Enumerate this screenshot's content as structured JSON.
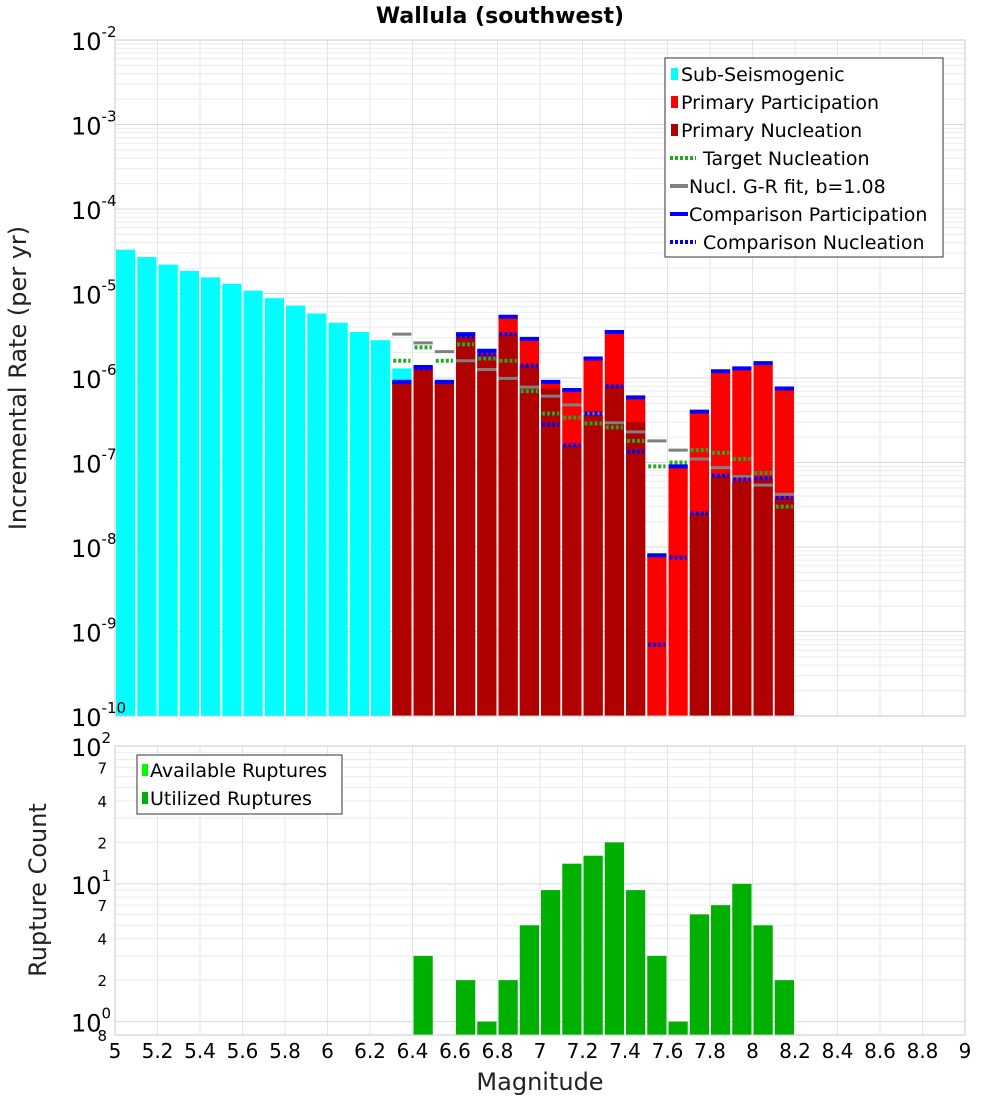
{
  "chart_data": [
    {
      "type": "bar",
      "title": "Wallula (southwest)",
      "xlabel": "",
      "ylabel": "Incremental Rate (per yr)",
      "yscale": "log",
      "ylim": [
        1e-10,
        0.01
      ],
      "xlim": [
        5,
        9
      ],
      "bin_width": 0.1,
      "y_tick_bases": [
        "10",
        "10",
        "10",
        "10",
        "10",
        "10",
        "10",
        "10",
        "10"
      ],
      "y_tick_exponents": [
        "-10",
        "-9",
        "-8",
        "-7",
        "-6",
        "-5",
        "-4",
        "-3",
        "-2"
      ],
      "colors": {
        "sub_seismogenic": "#00ffff",
        "primary_participation": "#ff0000",
        "primary_nucleation": "#b00000",
        "target_nucleation": "#22aa22",
        "gr_fit": "#808080",
        "comparison": "#0000ff",
        "gr_dark": "#333333"
      },
      "legend": {
        "placement": "top-right",
        "items": [
          {
            "label": "Sub-Seismogenic",
            "style": "box",
            "color": "#00ffff"
          },
          {
            "label": "Primary Participation",
            "style": "box",
            "color": "#ff0000"
          },
          {
            "label": "Primary Nucleation",
            "style": "box",
            "color": "#b00000"
          },
          {
            "label": "Target Nucleation",
            "style": "dotted",
            "color": "#22aa22"
          },
          {
            "label": "Nucl. G-R fit, b=1.08",
            "style": "line",
            "color": "#808080"
          },
          {
            "label": "Comparison Participation",
            "style": "line",
            "color": "#0000ff"
          },
          {
            "label": "Comparison Nucleation",
            "style": "dotted",
            "color": "#0000ff"
          }
        ]
      },
      "series": [
        {
          "name": "Sub-Seismogenic",
          "x": [
            5.05,
            5.15,
            5.25,
            5.35,
            5.45,
            5.55,
            5.65,
            5.75,
            5.85,
            5.95,
            6.05,
            6.15,
            6.25,
            6.35
          ],
          "values": [
            3.3e-05,
            2.7e-05,
            2.2e-05,
            1.85e-05,
            1.55e-05,
            1.3e-05,
            1.08e-05,
            8.8e-06,
            7.2e-06,
            5.8e-06,
            4.5e-06,
            3.5e-06,
            2.8e-06,
            1.3e-06
          ]
        },
        {
          "name": "Primary Participation",
          "x": [
            6.35,
            6.45,
            6.55,
            6.65,
            6.75,
            6.85,
            6.95,
            7.05,
            7.15,
            7.25,
            7.35,
            7.45,
            7.55,
            7.65,
            7.75,
            7.85,
            7.95,
            8.05,
            8.15
          ],
          "values": [
            9e-07,
            1.35e-06,
            9e-07,
            3.3e-06,
            2.1e-06,
            5.3e-06,
            2.9e-06,
            9e-07,
            7.2e-07,
            1.7e-06,
            3.5e-06,
            5.9e-07,
            8e-09,
            9e-08,
            4e-07,
            1.2e-06,
            1.3e-06,
            1.5e-06,
            7.5e-07
          ]
        },
        {
          "name": "Primary Nucleation",
          "x": [
            6.35,
            6.45,
            6.55,
            6.65,
            6.75,
            6.85,
            6.95,
            7.05,
            7.15,
            7.25,
            7.35,
            7.45,
            7.55,
            7.65,
            7.75,
            7.85,
            7.95,
            8.05,
            8.15
          ],
          "values": [
            9e-07,
            1.3e-06,
            9e-07,
            3.1e-06,
            1.9e-06,
            3.3e-06,
            1.4e-06,
            7.5e-07,
            1.6e-07,
            4e-07,
            8e-07,
            3e-07,
            0,
            0,
            2.5e-08,
            7e-08,
            6e-08,
            6.5e-08,
            3.8e-08
          ]
        },
        {
          "name": "Target Nucleation",
          "x": [
            6.35,
            6.45,
            6.55,
            6.65,
            6.75,
            6.85,
            6.95,
            7.05,
            7.15,
            7.25,
            7.35,
            7.45,
            7.55,
            7.65,
            7.75,
            7.85,
            7.95,
            8.05,
            8.15
          ],
          "values": [
            1.6e-06,
            2.3e-06,
            1.6e-06,
            2.5e-06,
            1.7e-06,
            1.6e-06,
            7e-07,
            3.8e-07,
            3.4e-07,
            2.9e-07,
            2.6e-07,
            1.8e-07,
            9e-08,
            1e-07,
            1.4e-07,
            1.3e-07,
            1.1e-07,
            7.5e-08,
            3e-08
          ]
        },
        {
          "name": "Nucl. G-R fit, b=1.08",
          "x": [
            6.35,
            6.45,
            6.55,
            6.65,
            6.75,
            6.85,
            6.95,
            7.05,
            7.15,
            7.25,
            7.35,
            7.45,
            7.55,
            7.65,
            7.75,
            7.85,
            7.95,
            8.05,
            8.15
          ],
          "values": [
            3.3e-06,
            2.6e-06,
            2.05e-06,
            1.6e-06,
            1.26e-06,
            9.9e-07,
            7.8e-07,
            6.1e-07,
            4.8e-07,
            3.8e-07,
            2.95e-07,
            2.3e-07,
            1.8e-07,
            1.4e-07,
            1.1e-07,
            8.7e-08,
            6.8e-08,
            5.4e-08,
            4.2e-08
          ]
        },
        {
          "name": "Comparison Participation",
          "x": [
            6.35,
            6.45,
            6.55,
            6.65,
            6.75,
            6.85,
            6.95,
            7.05,
            7.15,
            7.25,
            7.35,
            7.45,
            7.55,
            7.65,
            7.75,
            7.85,
            7.95,
            8.05,
            8.15
          ],
          "values": [
            9e-07,
            1.35e-06,
            9e-07,
            3.3e-06,
            2.1e-06,
            5.3e-06,
            2.9e-06,
            9e-07,
            7.2e-07,
            1.7e-06,
            3.5e-06,
            5.9e-07,
            8e-09,
            9e-08,
            4e-07,
            1.2e-06,
            1.3e-06,
            1.5e-06,
            7.5e-07
          ]
        },
        {
          "name": "Comparison Nucleation",
          "x": [
            6.35,
            6.45,
            6.55,
            6.65,
            6.75,
            6.85,
            6.95,
            7.05,
            7.15,
            7.25,
            7.35,
            7.45,
            7.55,
            7.65,
            7.75,
            7.85,
            7.95,
            8.05,
            8.15
          ],
          "values": [
            9e-07,
            1.3e-06,
            9e-07,
            3.1e-06,
            1.9e-06,
            3.3e-06,
            1.4e-06,
            2.8e-07,
            1.6e-07,
            3.8e-07,
            8e-07,
            1.35e-07,
            7e-10,
            7.5e-09,
            2.5e-08,
            7e-08,
            6.3e-08,
            6.5e-08,
            3.8e-08
          ]
        }
      ]
    },
    {
      "type": "bar",
      "title": "",
      "xlabel": "Magnitude",
      "ylabel": "Rupture Count",
      "yscale": "log",
      "ylim": [
        0.8,
        100
      ],
      "xlim": [
        5,
        9
      ],
      "bin_width": 0.1,
      "x_ticks": [
        "5",
        "5.2",
        "5.4",
        "5.6",
        "5.8",
        "6",
        "6.2",
        "6.4",
        "6.6",
        "6.8",
        "7",
        "7.2",
        "7.4",
        "7.6",
        "7.8",
        "8",
        "8.2",
        "8.4",
        "8.6",
        "8.8",
        "9"
      ],
      "y_major_ticks": [
        {
          "base": "10",
          "exp": "0"
        },
        {
          "base": "10",
          "exp": "1"
        },
        {
          "base": "10",
          "exp": "2"
        }
      ],
      "y_minor_ticks": [
        "8",
        "2",
        "4",
        "7",
        "2",
        "4",
        "7"
      ],
      "colors": {
        "available": "#00ff00",
        "utilized": "#00b000"
      },
      "legend": {
        "placement": "top-left",
        "items": [
          {
            "label": "Available Ruptures",
            "color": "#00ff00"
          },
          {
            "label": "Utilized Ruptures",
            "color": "#00b000"
          }
        ]
      },
      "series": [
        {
          "name": "Utilized Ruptures",
          "x": [
            6.45,
            6.65,
            6.75,
            6.85,
            6.95,
            7.05,
            7.15,
            7.25,
            7.35,
            7.45,
            7.55,
            7.65,
            7.75,
            7.85,
            7.95,
            8.05,
            8.15
          ],
          "values": [
            3,
            2,
            1,
            2,
            5,
            9,
            14,
            16,
            20,
            9,
            3,
            1,
            6,
            7,
            10,
            5,
            2
          ]
        }
      ]
    }
  ]
}
